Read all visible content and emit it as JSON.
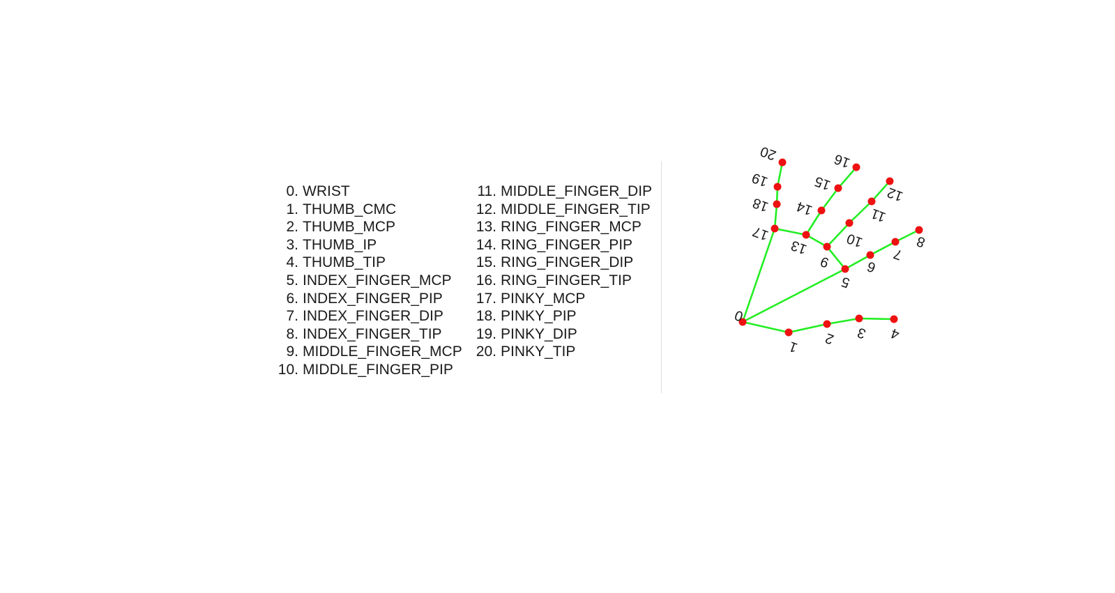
{
  "landmarks": [
    {
      "id": "0",
      "name": "WRIST"
    },
    {
      "id": "1",
      "name": "THUMB_CMC"
    },
    {
      "id": "2",
      "name": "THUMB_MCP"
    },
    {
      "id": "3",
      "name": "THUMB_IP"
    },
    {
      "id": "4",
      "name": "THUMB_TIP"
    },
    {
      "id": "5",
      "name": "INDEX_FINGER_MCP"
    },
    {
      "id": "6",
      "name": "INDEX_FINGER_PIP"
    },
    {
      "id": "7",
      "name": "INDEX_FINGER_DIP"
    },
    {
      "id": "8",
      "name": "INDEX_FINGER_TIP"
    },
    {
      "id": "9",
      "name": "MIDDLE_FINGER_MCP"
    },
    {
      "id": "10",
      "name": "MIDDLE_FINGER_PIP"
    },
    {
      "id": "11",
      "name": "MIDDLE_FINGER_DIP"
    },
    {
      "id": "12",
      "name": "MIDDLE_FINGER_TIP"
    },
    {
      "id": "13",
      "name": "RING_FINGER_MCP"
    },
    {
      "id": "14",
      "name": "RING_FINGER_PIP"
    },
    {
      "id": "15",
      "name": "RING_FINGER_DIP"
    },
    {
      "id": "16",
      "name": "RING_FINGER_TIP"
    },
    {
      "id": "17",
      "name": "PINKY_MCP"
    },
    {
      "id": "18",
      "name": "PINKY_PIP"
    },
    {
      "id": "19",
      "name": "PINKY_DIP"
    },
    {
      "id": "20",
      "name": "PINKY_TIP"
    }
  ],
  "connections": [
    [
      "0",
      "1"
    ],
    [
      "1",
      "2"
    ],
    [
      "2",
      "3"
    ],
    [
      "3",
      "4"
    ],
    [
      "0",
      "5"
    ],
    [
      "5",
      "6"
    ],
    [
      "6",
      "7"
    ],
    [
      "7",
      "8"
    ],
    [
      "5",
      "9"
    ],
    [
      "9",
      "10"
    ],
    [
      "10",
      "11"
    ],
    [
      "11",
      "12"
    ],
    [
      "9",
      "13"
    ],
    [
      "13",
      "14"
    ],
    [
      "14",
      "15"
    ],
    [
      "15",
      "16"
    ],
    [
      "13",
      "17"
    ],
    [
      "17",
      "18"
    ],
    [
      "18",
      "19"
    ],
    [
      "19",
      "20"
    ],
    [
      "0",
      "17"
    ]
  ],
  "colors": {
    "bone": "#22ee22",
    "joint": "#ee1111",
    "text": "#1a1a1a",
    "divider": "#dddddd"
  }
}
